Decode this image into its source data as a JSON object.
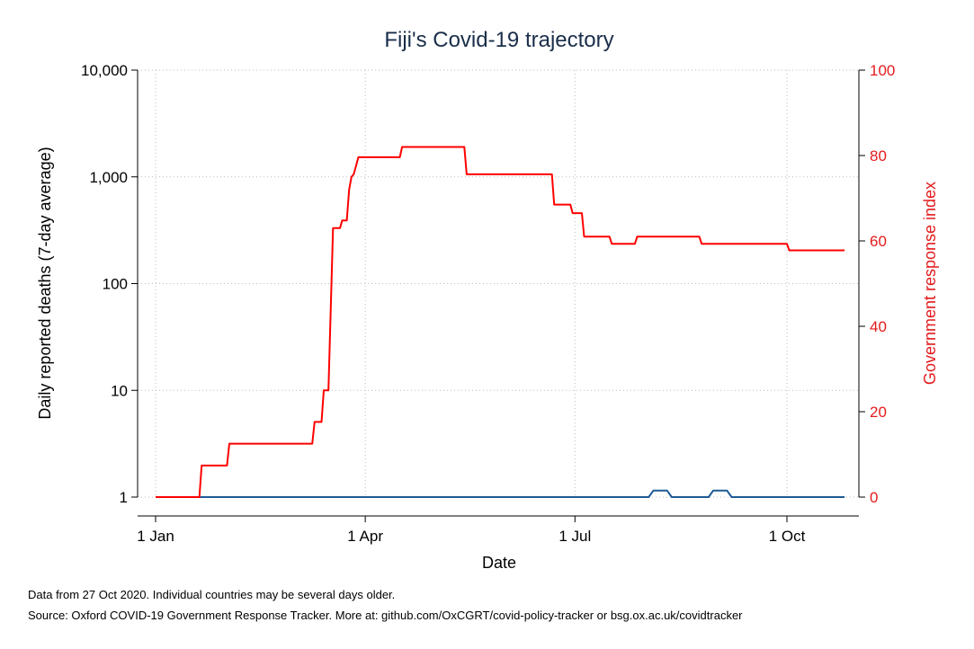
{
  "chart_data": {
    "type": "line",
    "title": "Fiji's Covid-19 trajectory",
    "xlabel": "Date",
    "ylabel_left": "Daily reported deaths (7-day average)",
    "ylabel_right": "Government response index",
    "x_ticks": [
      {
        "day": 0,
        "label": "1 Jan"
      },
      {
        "day": 91,
        "label": "1 Apr"
      },
      {
        "day": 182,
        "label": "1 Jul"
      },
      {
        "day": 274,
        "label": "1 Oct"
      }
    ],
    "y_left": {
      "scale": "log",
      "range": [
        1,
        10000
      ],
      "ticks": [
        {
          "value": 1,
          "label": "1"
        },
        {
          "value": 10,
          "label": "10"
        },
        {
          "value": 100,
          "label": "100"
        },
        {
          "value": 1000,
          "label": "1,000"
        },
        {
          "value": 10000,
          "label": "10,000"
        }
      ]
    },
    "y_right": {
      "scale": "linear",
      "range": [
        0,
        100
      ],
      "ticks": [
        {
          "value": 0,
          "label": "0"
        },
        {
          "value": 20,
          "label": "20"
        },
        {
          "value": 40,
          "label": "40"
        },
        {
          "value": 60,
          "label": "60"
        },
        {
          "value": 80,
          "label": "80"
        },
        {
          "value": 100,
          "label": "100"
        }
      ]
    },
    "grid": true,
    "series": [
      {
        "name": "",
        "axis": "left",
        "color": "#1f5a96",
        "points": [
          [
            0,
            1
          ],
          [
            214,
            1
          ],
          [
            216,
            1.15
          ],
          [
            222,
            1.15
          ],
          [
            224,
            1
          ],
          [
            240,
            1
          ],
          [
            242,
            1.15
          ],
          [
            248,
            1.15
          ],
          [
            250,
            1
          ],
          [
            299,
            1
          ]
        ]
      },
      {
        "name": "",
        "axis": "right",
        "color": "#ff0000",
        "points": [
          [
            0,
            0
          ],
          [
            19,
            0
          ],
          [
            20,
            7.4
          ],
          [
            31,
            7.4
          ],
          [
            32,
            12.5
          ],
          [
            68,
            12.5
          ],
          [
            69,
            17.6
          ],
          [
            72,
            17.6
          ],
          [
            73,
            25
          ],
          [
            75,
            25
          ],
          [
            77,
            63
          ],
          [
            80,
            63
          ],
          [
            81,
            64.8
          ],
          [
            83,
            64.8
          ],
          [
            84,
            72
          ],
          [
            85,
            75
          ],
          [
            86,
            75.6
          ],
          [
            88,
            79.6
          ],
          [
            106,
            79.6
          ],
          [
            107,
            82
          ],
          [
            134,
            82
          ],
          [
            135,
            75.6
          ],
          [
            172,
            75.6
          ],
          [
            173,
            68.5
          ],
          [
            180,
            68.5
          ],
          [
            181,
            66.5
          ],
          [
            185,
            66.5
          ],
          [
            186,
            61
          ],
          [
            197,
            61
          ],
          [
            198,
            59.3
          ],
          [
            208,
            59.3
          ],
          [
            209,
            61
          ],
          [
            236,
            61
          ],
          [
            237,
            59.3
          ],
          [
            274,
            59.3
          ],
          [
            275,
            57.8
          ],
          [
            299,
            57.8
          ]
        ]
      }
    ]
  },
  "notes": {
    "line1": "Data from 27 Oct 2020. Individual countries may be several days older.",
    "line2": "Source: Oxford COVID-19 Government Response Tracker. More at: github.com/OxCGRT/covid-policy-tracker or bsg.ox.ac.uk/covidtracker"
  },
  "colors": {
    "title": "#1a2e4a",
    "left_axis": "#000000",
    "right_axis": "#e41a1c",
    "grid": "#bdbdbd"
  }
}
